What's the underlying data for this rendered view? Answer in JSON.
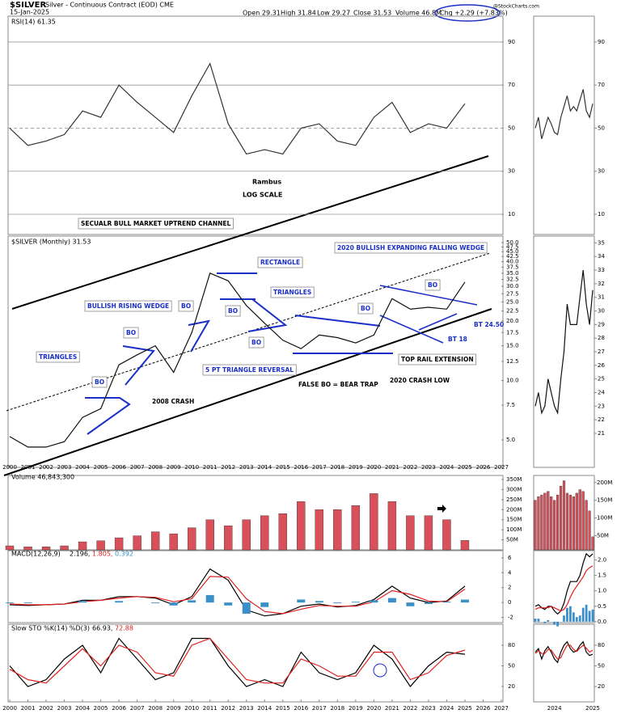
{
  "header": {
    "symbol": "$SILVER",
    "description": "Silver - Continuous Contract (EOD) CME",
    "date": "15-Jan-2025",
    "quote": [
      "Open 29.31",
      "High 31.84",
      "Low 29.27",
      "Close 31.53",
      "Volume 46.8M"
    ],
    "change": "Chg +2.29 (+7.83%)",
    "watermark": "@StockCharts.com"
  },
  "chart_data": [
    {
      "type": "line",
      "title": "RSI(14) 61.35",
      "notes": [
        "Rambus",
        "LOG SCALE"
      ],
      "x": [
        2000,
        2001,
        2002,
        2003,
        2004,
        2005,
        2006,
        2007,
        2008,
        2009,
        2010,
        2011,
        2012,
        2013,
        2014,
        2015,
        2016,
        2017,
        2018,
        2019,
        2020,
        2021,
        2022,
        2023,
        2024,
        2025
      ],
      "xlim": [
        2000,
        2027
      ],
      "ylim": [
        0.6,
        102
      ],
      "yticks": [
        10,
        30,
        50,
        70,
        90
      ],
      "grid": true,
      "series": [
        {
          "name": "RSI",
          "color": "#333333",
          "values": [
            50,
            42,
            44,
            47,
            58,
            55,
            70,
            62,
            55,
            48,
            65,
            80,
            52,
            38,
            40,
            38,
            50,
            52,
            44,
            42,
            55,
            62,
            48,
            52,
            50,
            61.35
          ]
        }
      ]
    },
    {
      "type": "line",
      "title": "$SILVER (Monthly) 31.53",
      "log": true,
      "x": [
        2000,
        2001,
        2002,
        2003,
        2004,
        2005,
        2006,
        2007,
        2008,
        2009,
        2010,
        2011,
        2012,
        2013,
        2014,
        2015,
        2016,
        2017,
        2018,
        2019,
        2020,
        2021,
        2022,
        2023,
        2024,
        2025
      ],
      "xlim": [
        2000,
        2027
      ],
      "xticks": [
        2000,
        2001,
        2002,
        2003,
        2004,
        2005,
        2006,
        2007,
        2008,
        2009,
        2010,
        2011,
        2012,
        2013,
        2014,
        2015,
        2016,
        2017,
        2018,
        2019,
        2020,
        2021,
        2022,
        2023,
        2024,
        2025,
        2026,
        2027
      ],
      "ylim": [
        3.63,
        53.9
      ],
      "yticks": [
        {
          "value": 50,
          "label": "50.0"
        },
        {
          "value": 47.5,
          "label": "47.5"
        },
        {
          "value": 45,
          "label": "45.0"
        },
        {
          "value": 42.5,
          "label": "42.5"
        },
        {
          "value": 40,
          "label": "40.0"
        },
        {
          "value": 37.5,
          "label": "37.5"
        },
        {
          "value": 35,
          "label": "35.0"
        },
        {
          "value": 32.5,
          "label": "32.5"
        },
        {
          "value": 30,
          "label": "30.0"
        },
        {
          "value": 27.5,
          "label": "27.5"
        },
        {
          "value": 25,
          "label": "25.0"
        },
        {
          "value": 22.5,
          "label": "22.5"
        },
        {
          "value": 20,
          "label": "20.0"
        },
        {
          "value": 17.5,
          "label": "17.5"
        },
        {
          "value": 15,
          "label": "15.0"
        },
        {
          "value": 12.5,
          "label": "12.5"
        },
        {
          "value": 10,
          "label": "10.0"
        },
        7.5,
        {
          "value": 5,
          "label": "5.0"
        }
      ],
      "grid": false,
      "series": [
        {
          "name": "$SILVER",
          "color": "#111111",
          "values": [
            5.2,
            4.6,
            4.6,
            4.9,
            6.5,
            7.2,
            12,
            13.5,
            15,
            11,
            17.5,
            35,
            32,
            24,
            19.5,
            16,
            14.5,
            17,
            16.5,
            15.5,
            17,
            26,
            23,
            23.5,
            23,
            31.53
          ]
        }
      ],
      "annotations": [
        "SECUALR BULL MARKET UPTREND CHANNEL",
        "2020 BULLISH EXPANDING FALLING WEDGE",
        "RECTANGLE",
        "TRIANGLES",
        "BULLISH RISING WEDGE",
        "BO",
        "BO",
        "BO",
        "BO",
        "BO",
        "BO",
        "BO",
        "TRIANGLES",
        "5 PT TRIANGLE REVERSAL",
        "2008 CRASH",
        "FALSE BO = BEAR TRAP",
        "2020 CRASH LOW",
        "TOP RAIL EXTENSION",
        "BT 18",
        "BT 24.50"
      ]
    },
    {
      "type": "bar",
      "title": "Volume 46,843,300",
      "x": [
        2000,
        2001,
        2002,
        2003,
        2004,
        2005,
        2006,
        2007,
        2008,
        2009,
        2010,
        2011,
        2012,
        2013,
        2014,
        2015,
        2016,
        2017,
        2018,
        2019,
        2020,
        2021,
        2022,
        2023,
        2024,
        2025
      ],
      "xlim": [
        2000,
        2027
      ],
      "ylim": [
        0,
        370
      ],
      "yticks": [
        {
          "value": 350,
          "label": "350M"
        },
        {
          "value": 300,
          "label": "300M"
        },
        {
          "value": 250,
          "label": "250M"
        },
        {
          "value": 200,
          "label": "200M"
        },
        {
          "value": 150,
          "label": "150M"
        },
        {
          "value": 100,
          "label": "100M"
        },
        {
          "value": 50,
          "label": "50M"
        }
      ],
      "series": [
        {
          "name": "Volume",
          "color": "#d9505a",
          "values": [
            20,
            15,
            15,
            20,
            40,
            45,
            60,
            70,
            90,
            80,
            110,
            150,
            120,
            150,
            170,
            180,
            240,
            200,
            200,
            220,
            280,
            240,
            170,
            170,
            150,
            46.8
          ]
        }
      ]
    },
    {
      "type": "line",
      "title": "MACD(12,26,9)",
      "readings": [
        "2.196,",
        "1.805,",
        "0.392"
      ],
      "x": [
        2000,
        2001,
        2002,
        2003,
        2004,
        2005,
        2006,
        2007,
        2008,
        2009,
        2010,
        2011,
        2012,
        2013,
        2014,
        2015,
        2016,
        2017,
        2018,
        2019,
        2020,
        2021,
        2022,
        2023,
        2024,
        2025
      ],
      "xlim": [
        2000,
        2027
      ],
      "ylim": [
        -2.7,
        6.96
      ],
      "yticks": [
        6,
        4,
        2,
        0,
        -2
      ],
      "series": [
        {
          "name": "MACD",
          "color": "#000000",
          "values": [
            -0.3,
            -0.4,
            -0.3,
            -0.2,
            0.3,
            0.3,
            0.8,
            0.8,
            0.6,
            -0.3,
            0.8,
            4.5,
            3,
            -1,
            -1.8,
            -1.5,
            -0.5,
            -0.2,
            -0.6,
            -0.4,
            0.4,
            2.2,
            0.6,
            0,
            0.2,
            2.196
          ]
        },
        {
          "name": "Signal",
          "color": "#e02020",
          "values": [
            -0.2,
            -0.3,
            -0.3,
            -0.2,
            0.1,
            0.3,
            0.6,
            0.8,
            0.7,
            0.1,
            0.5,
            3.5,
            3.4,
            0.5,
            -1.2,
            -1.5,
            -0.9,
            -0.4,
            -0.5,
            -0.5,
            0.1,
            1.6,
            1.1,
            0.2,
            0.1,
            1.805
          ]
        },
        {
          "name": "Histogram",
          "color": "#3a8fc8",
          "kind": "bar",
          "values": [
            -0.1,
            -0.1,
            0,
            0,
            0.2,
            0,
            0.2,
            0,
            -0.1,
            -0.4,
            0.3,
            1,
            -0.4,
            -1.5,
            -0.6,
            0,
            0.4,
            0.2,
            -0.1,
            0.1,
            0.3,
            0.6,
            -0.5,
            -0.2,
            0.1,
            0.392
          ]
        }
      ]
    },
    {
      "type": "line",
      "title": "Slow STO %K(14) %D(3)",
      "readings": [
        "66.93,",
        "72.88"
      ],
      "x": [
        2000,
        2001,
        2002,
        2003,
        2004,
        2005,
        2006,
        2007,
        2008,
        2009,
        2010,
        2011,
        2012,
        2013,
        2014,
        2015,
        2016,
        2017,
        2018,
        2019,
        2020,
        2021,
        2022,
        2023,
        2024,
        2025
      ],
      "xlim": [
        2000,
        2027
      ],
      "xticks": [
        2000,
        2001,
        2002,
        2003,
        2004,
        2005,
        2006,
        2007,
        2008,
        2009,
        2010,
        2011,
        2012,
        2013,
        2014,
        2015,
        2016,
        2017,
        2018,
        2019,
        2020,
        2021,
        2022,
        2023,
        2024,
        2025,
        2026,
        2027
      ],
      "ylim": [
        -2.4,
        110.6
      ],
      "yticks": [
        80,
        50,
        20
      ],
      "series": [
        {
          "name": "%K",
          "color": "#000000",
          "values": [
            50,
            20,
            30,
            60,
            80,
            40,
            90,
            60,
            30,
            40,
            90,
            90,
            50,
            20,
            30,
            20,
            70,
            40,
            30,
            40,
            80,
            60,
            20,
            50,
            70,
            66.93
          ]
        },
        {
          "name": "%D",
          "color": "#e02020",
          "values": [
            45,
            30,
            25,
            50,
            75,
            50,
            80,
            70,
            40,
            35,
            80,
            90,
            60,
            30,
            25,
            25,
            60,
            50,
            35,
            35,
            70,
            70,
            30,
            40,
            65,
            72.88
          ]
        }
      ]
    },
    {
      "type": "line",
      "categories": [
        null,
        null,
        null,
        null,
        null,
        null,
        null,
        null,
        null,
        null,
        null,
        null,
        null,
        null,
        null,
        null,
        null,
        null,
        null
      ],
      "ylim": [
        0.6,
        102
      ],
      "yticks": [
        10,
        30,
        50,
        70,
        90
      ],
      "series": [
        {
          "name": "RSI",
          "color": "#333333",
          "values": [
            50,
            55,
            45,
            50,
            55,
            52,
            48,
            47,
            55,
            60,
            65,
            58,
            60,
            58,
            63,
            68,
            58,
            55,
            61.35
          ]
        }
      ]
    },
    {
      "type": "line",
      "categories": [
        null,
        null,
        null,
        null,
        null,
        null,
        null,
        null,
        null,
        null,
        null,
        null,
        null,
        null,
        null,
        null,
        null,
        null,
        null
      ],
      "ylim": [
        18.5,
        35.5
      ],
      "yticks": [
        35,
        34,
        33,
        32,
        31,
        30,
        29,
        28,
        27,
        26,
        25,
        24,
        23,
        22,
        21
      ],
      "series": [
        {
          "name": "$SILVER",
          "color": "#111111",
          "values": [
            23,
            24,
            22.5,
            23,
            25,
            24,
            23,
            22.5,
            25,
            27,
            30.5,
            29,
            29,
            29,
            31,
            33,
            30.5,
            29,
            31.53
          ]
        }
      ]
    },
    {
      "type": "bar",
      "categories": [
        null,
        null,
        null,
        null,
        null,
        null,
        null,
        null,
        null,
        null,
        null,
        null,
        null,
        null,
        null,
        null,
        null,
        null,
        null
      ],
      "ylim": [
        10,
        220
      ],
      "yticks": [
        {
          "value": 200,
          "label": "200M"
        },
        {
          "value": 150,
          "label": "150M"
        },
        {
          "value": 100,
          "label": "100M"
        },
        {
          "value": 50,
          "label": "50M"
        }
      ],
      "series": [
        {
          "name": "Volume",
          "color": "#d9505a",
          "values": [
            150,
            160,
            165,
            170,
            175,
            160,
            150,
            165,
            190,
            205,
            170,
            165,
            160,
            170,
            180,
            175,
            150,
            120,
            46.8
          ]
        }
      ]
    },
    {
      "type": "line",
      "categories": [
        null,
        null,
        null,
        null,
        null,
        null,
        null,
        null,
        null,
        null,
        null,
        null,
        null,
        null,
        null,
        null,
        null,
        null,
        null
      ],
      "ylim": [
        -0.03,
        2.3
      ],
      "yticks": [
        {
          "value": 2,
          "label": "2.0"
        },
        {
          "value": 1.5,
          "label": "1.5"
        },
        {
          "value": 1,
          "label": "1.0"
        },
        {
          "value": 0.5,
          "label": "0.5"
        },
        {
          "value": 0,
          "label": "0.0"
        }
      ],
      "series": [
        {
          "name": "MACD",
          "color": "#000000",
          "values": [
            0.5,
            0.55,
            0.45,
            0.4,
            0.5,
            0.5,
            0.35,
            0.25,
            0.35,
            0.6,
            1,
            1.3,
            1.3,
            1.3,
            1.5,
            1.9,
            2.2,
            2.1,
            2.196
          ]
        },
        {
          "name": "Signal",
          "color": "#e02020",
          "values": [
            0.4,
            0.45,
            0.45,
            0.45,
            0.45,
            0.5,
            0.45,
            0.4,
            0.35,
            0.4,
            0.55,
            0.8,
            1,
            1.15,
            1.3,
            1.45,
            1.65,
            1.75,
            1.805
          ]
        },
        {
          "name": "Histogram",
          "color": "#3a8fc8",
          "kind": "bar",
          "values": [
            0.1,
            0.1,
            0,
            -0.05,
            0.05,
            0,
            -0.1,
            -0.15,
            0,
            0.2,
            0.45,
            0.5,
            0.3,
            0.15,
            0.2,
            0.45,
            0.55,
            0.35,
            0.392
          ]
        }
      ]
    },
    {
      "type": "line",
      "categories": [
        null,
        null,
        null,
        null,
        null,
        null,
        "2024",
        null,
        null,
        null,
        null,
        null,
        null,
        null,
        null,
        null,
        null,
        null,
        "2025"
      ],
      "ylim": [
        -2.4,
        110.6
      ],
      "yticks": [
        80,
        50,
        20
      ],
      "series": [
        {
          "name": "%K",
          "color": "#000000",
          "values": [
            70,
            75,
            60,
            72,
            78,
            70,
            60,
            55,
            70,
            80,
            85,
            75,
            70,
            72,
            80,
            85,
            70,
            65,
            66.93
          ]
        },
        {
          "name": "%D",
          "color": "#e02020",
          "values": [
            68,
            72,
            68,
            68,
            74,
            73,
            66,
            60,
            62,
            72,
            80,
            80,
            74,
            71,
            76,
            80,
            76,
            70,
            72.88
          ]
        }
      ]
    }
  ]
}
